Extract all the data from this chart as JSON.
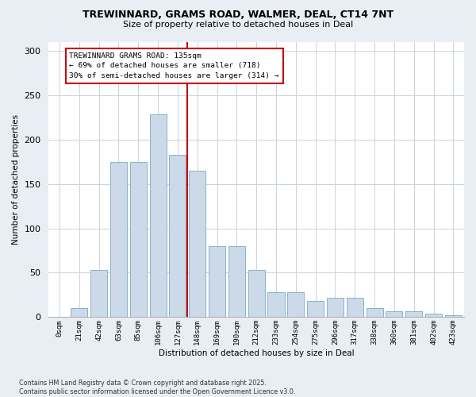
{
  "title1": "TREWINNARD, GRAMS ROAD, WALMER, DEAL, CT14 7NT",
  "title2": "Size of property relative to detached houses in Deal",
  "xlabel": "Distribution of detached houses by size in Deal",
  "ylabel": "Number of detached properties",
  "bar_labels": [
    "0sqm",
    "21sqm",
    "42sqm",
    "63sqm",
    "85sqm",
    "106sqm",
    "127sqm",
    "148sqm",
    "169sqm",
    "190sqm",
    "212sqm",
    "233sqm",
    "254sqm",
    "275sqm",
    "296sqm",
    "317sqm",
    "338sqm",
    "360sqm",
    "381sqm",
    "402sqm",
    "423sqm"
  ],
  "bar_values": [
    0,
    10,
    53,
    175,
    175,
    228,
    183,
    165,
    80,
    80,
    53,
    28,
    28,
    18,
    22,
    22,
    10,
    7,
    7,
    4,
    2
  ],
  "bar_color": "#ccd9e8",
  "bar_edge_color": "#7aaac8",
  "vline_color": "#cc0000",
  "annotation_text_line1": "TREWINNARD GRAMS ROAD: 135sqm",
  "annotation_text_line2": "← 69% of detached houses are smaller (718)",
  "annotation_text_line3": "30% of semi-detached houses are larger (314) →",
  "ylim": [
    0,
    310
  ],
  "yticks": [
    0,
    50,
    100,
    150,
    200,
    250,
    300
  ],
  "footer": "Contains HM Land Registry data © Crown copyright and database right 2025.\nContains public sector information licensed under the Open Government Licence v3.0.",
  "bg_color": "#e8eef4",
  "plot_bg_color": "#ffffff",
  "grid_color": "#c8d4dc"
}
